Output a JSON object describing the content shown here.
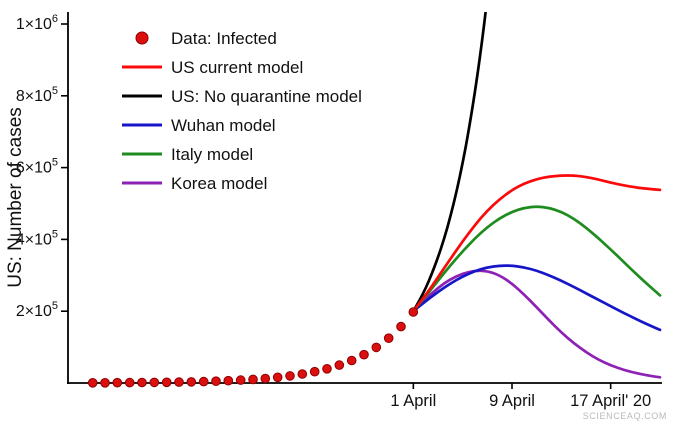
{
  "watermark": "SCIENCEAQ.COM",
  "chart_data": {
    "type": "line",
    "title": "",
    "xlabel": "",
    "ylabel": "US: Number of cases",
    "grid": false,
    "legend_position": "upper-left-inside",
    "x_axis": {
      "unit": "days relative to 1 April 2020",
      "domain": [
        -28,
        20
      ],
      "tick_values": [
        0,
        8,
        16
      ],
      "tick_labels": [
        "1 April",
        "9 April",
        "17 April' 20"
      ]
    },
    "y_axis": {
      "domain": [
        0,
        1000000
      ],
      "tick_values": [
        200000,
        400000,
        600000,
        800000,
        1000000
      ],
      "tick_labels": [
        "2×10^5",
        "4×10^5",
        "6×10^5",
        "8×10^5",
        "1×10^6"
      ]
    },
    "legend": [
      {
        "label": "Data: Infected",
        "marker": "dot",
        "color": "#dc0f0f"
      },
      {
        "label": "US current model",
        "marker": "line",
        "color": "#fa0a0a"
      },
      {
        "label": "US: No quarantine model",
        "marker": "line",
        "color": "#000000"
      },
      {
        "label": "Wuhan model",
        "marker": "line",
        "color": "#1616c8"
      },
      {
        "label": "Italy model",
        "marker": "line",
        "color": "#1f8c1f"
      },
      {
        "label": "Korea model",
        "marker": "line",
        "color": "#8d22b5"
      }
    ],
    "scatter": {
      "name": "Data: Infected",
      "color": "#dc0f0f",
      "edge_color": "#8f0000",
      "points": [
        [
          -26,
          500
        ],
        [
          -25,
          640
        ],
        [
          -24,
          800
        ],
        [
          -23,
          1000
        ],
        [
          -22,
          1270
        ],
        [
          -21,
          1600
        ],
        [
          -20,
          2000
        ],
        [
          -19,
          2520
        ],
        [
          -18,
          3170
        ],
        [
          -17,
          3990
        ],
        [
          -16,
          5010
        ],
        [
          -15,
          6310
        ],
        [
          -14,
          7940
        ],
        [
          -13,
          9990
        ],
        [
          -12,
          12570
        ],
        [
          -11,
          15810
        ],
        [
          -10,
          19890
        ],
        [
          -9,
          25030
        ],
        [
          -8,
          31490
        ],
        [
          -7,
          39620
        ],
        [
          -6,
          49850
        ],
        [
          -5,
          62720
        ],
        [
          -4,
          78910
        ],
        [
          -3,
          99280
        ],
        [
          -2,
          124910
        ],
        [
          -1,
          157170
        ],
        [
          0,
          197750
        ]
      ]
    },
    "series": [
      {
        "name": "US: No quarantine model",
        "color": "#000000",
        "points": [
          [
            0,
            200000
          ],
          [
            0.5,
            230000
          ],
          [
            1,
            264000
          ],
          [
            1.5,
            304000
          ],
          [
            2,
            350000
          ],
          [
            2.5,
            402000
          ],
          [
            3,
            463000
          ],
          [
            3.5,
            532000
          ],
          [
            4,
            613000
          ],
          [
            4.5,
            705000
          ],
          [
            5,
            811000
          ],
          [
            5.5,
            933000
          ],
          [
            6,
            1073000
          ],
          [
            6.5,
            1234000
          ]
        ]
      },
      {
        "name": "Korea model",
        "color": "#8d22b5",
        "points": [
          [
            0,
            200000
          ],
          [
            1,
            235000
          ],
          [
            2,
            265000
          ],
          [
            3,
            289000
          ],
          [
            4,
            305000
          ],
          [
            5,
            313000
          ],
          [
            6,
            312000
          ],
          [
            7,
            300000
          ],
          [
            8,
            277000
          ],
          [
            9,
            246000
          ],
          [
            10,
            211000
          ],
          [
            11,
            175000
          ],
          [
            12,
            141000
          ],
          [
            13,
            111000
          ],
          [
            14,
            86000
          ],
          [
            15,
            65000
          ],
          [
            16,
            49000
          ],
          [
            17,
            37000
          ],
          [
            18,
            28000
          ],
          [
            19,
            21000
          ],
          [
            20,
            16000
          ]
        ]
      },
      {
        "name": "Wuhan model",
        "color": "#1616c8",
        "points": [
          [
            0,
            200000
          ],
          [
            1,
            228000
          ],
          [
            2,
            254000
          ],
          [
            3,
            277000
          ],
          [
            4,
            297000
          ],
          [
            5,
            312000
          ],
          [
            6,
            322000
          ],
          [
            7,
            327000
          ],
          [
            8,
            327000
          ],
          [
            9,
            322000
          ],
          [
            10,
            313000
          ],
          [
            11,
            300000
          ],
          [
            12,
            285000
          ],
          [
            13,
            268000
          ],
          [
            14,
            250000
          ],
          [
            15,
            232000
          ],
          [
            16,
            214000
          ],
          [
            17,
            196000
          ],
          [
            18,
            179000
          ],
          [
            19,
            163000
          ],
          [
            20,
            148000
          ]
        ]
      },
      {
        "name": "Italy model",
        "color": "#1f8c1f",
        "points": [
          [
            0,
            200000
          ],
          [
            1,
            242000
          ],
          [
            2,
            285000
          ],
          [
            3,
            327000
          ],
          [
            4,
            367000
          ],
          [
            5,
            403000
          ],
          [
            6,
            434000
          ],
          [
            7,
            459000
          ],
          [
            8,
            477000
          ],
          [
            9,
            488000
          ],
          [
            10,
            492000
          ],
          [
            11,
            488000
          ],
          [
            12,
            477000
          ],
          [
            13,
            458000
          ],
          [
            14,
            433000
          ],
          [
            15,
            404000
          ],
          [
            16,
            372000
          ],
          [
            17,
            339000
          ],
          [
            18,
            306000
          ],
          [
            19,
            274000
          ],
          [
            20,
            244000
          ]
        ]
      },
      {
        "name": "US current model",
        "color": "#fa0a0a",
        "points": [
          [
            0,
            200000
          ],
          [
            1,
            245000
          ],
          [
            2,
            295000
          ],
          [
            3,
            345000
          ],
          [
            4,
            395000
          ],
          [
            5,
            440000
          ],
          [
            6,
            480000
          ],
          [
            7,
            512000
          ],
          [
            8,
            538000
          ],
          [
            9,
            556000
          ],
          [
            10,
            568000
          ],
          [
            11,
            575000
          ],
          [
            12,
            578000
          ],
          [
            13,
            578000
          ],
          [
            14,
            574000
          ],
          [
            15,
            567000
          ],
          [
            16,
            558000
          ],
          [
            17,
            551000
          ],
          [
            18,
            545000
          ],
          [
            19,
            541000
          ],
          [
            20,
            538000
          ]
        ]
      }
    ]
  }
}
